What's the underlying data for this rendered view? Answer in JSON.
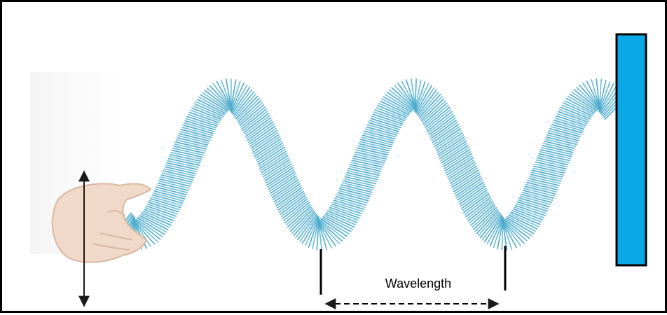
{
  "diagram": {
    "wavelength_label": "Wavelength"
  },
  "colors": {
    "spring": "#57b6d6",
    "spring_dark": "#3f9fc2",
    "wall": "#0aa8e6",
    "wall_border": "#000000",
    "hand": "#f1d9c9",
    "hand_shadow": "#d9b8a2",
    "arrow": "#1a1a1a"
  },
  "icons": {
    "hand": "hand-icon",
    "motion_arrow": "double-arrow-vertical-icon",
    "wall": "wall-icon"
  }
}
